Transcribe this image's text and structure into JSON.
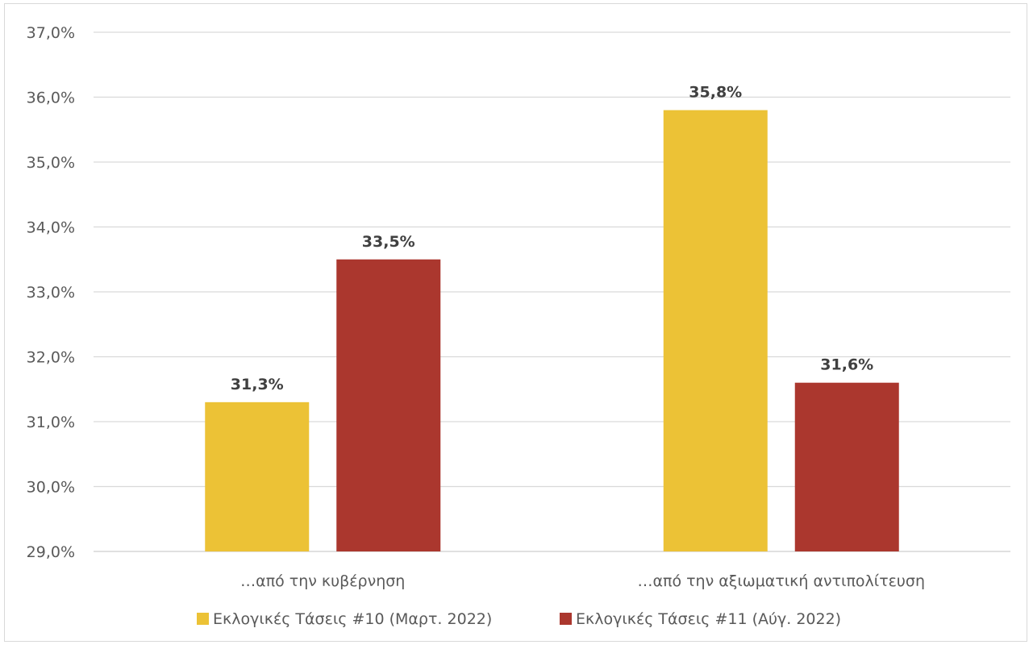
{
  "chart_data": {
    "type": "bar",
    "categories": [
      "…από την κυβέρνηση",
      "…από την αξιωματική αντιπολίτευση"
    ],
    "series": [
      {
        "name": "Εκλογικές Τάσεις #10 (Μαρτ. 2022)",
        "values": [
          31.3,
          35.8
        ],
        "color": "#ecc236",
        "labels": [
          "31,3%",
          "35,8%"
        ]
      },
      {
        "name": "Εκλογικές Τάσεις #11 (Αύγ. 2022)",
        "values": [
          33.5,
          31.6
        ],
        "color": "#ab372e",
        "labels": [
          "33,5%",
          "31,6%"
        ]
      }
    ],
    "ylim": [
      29.0,
      37.0
    ],
    "yticks": [
      29,
      30,
      31,
      32,
      33,
      34,
      35,
      36,
      37
    ],
    "ytick_labels": [
      "29,0%",
      "30,0%",
      "31,0%",
      "32,0%",
      "33,0%",
      "34,0%",
      "35,0%",
      "36,0%",
      "37,0%"
    ],
    "grid": true,
    "legend_position": "bottom",
    "title": "",
    "xlabel": "",
    "ylabel": "",
    "gridline_color": "#d9d9d9",
    "text_color": "#595959"
  }
}
